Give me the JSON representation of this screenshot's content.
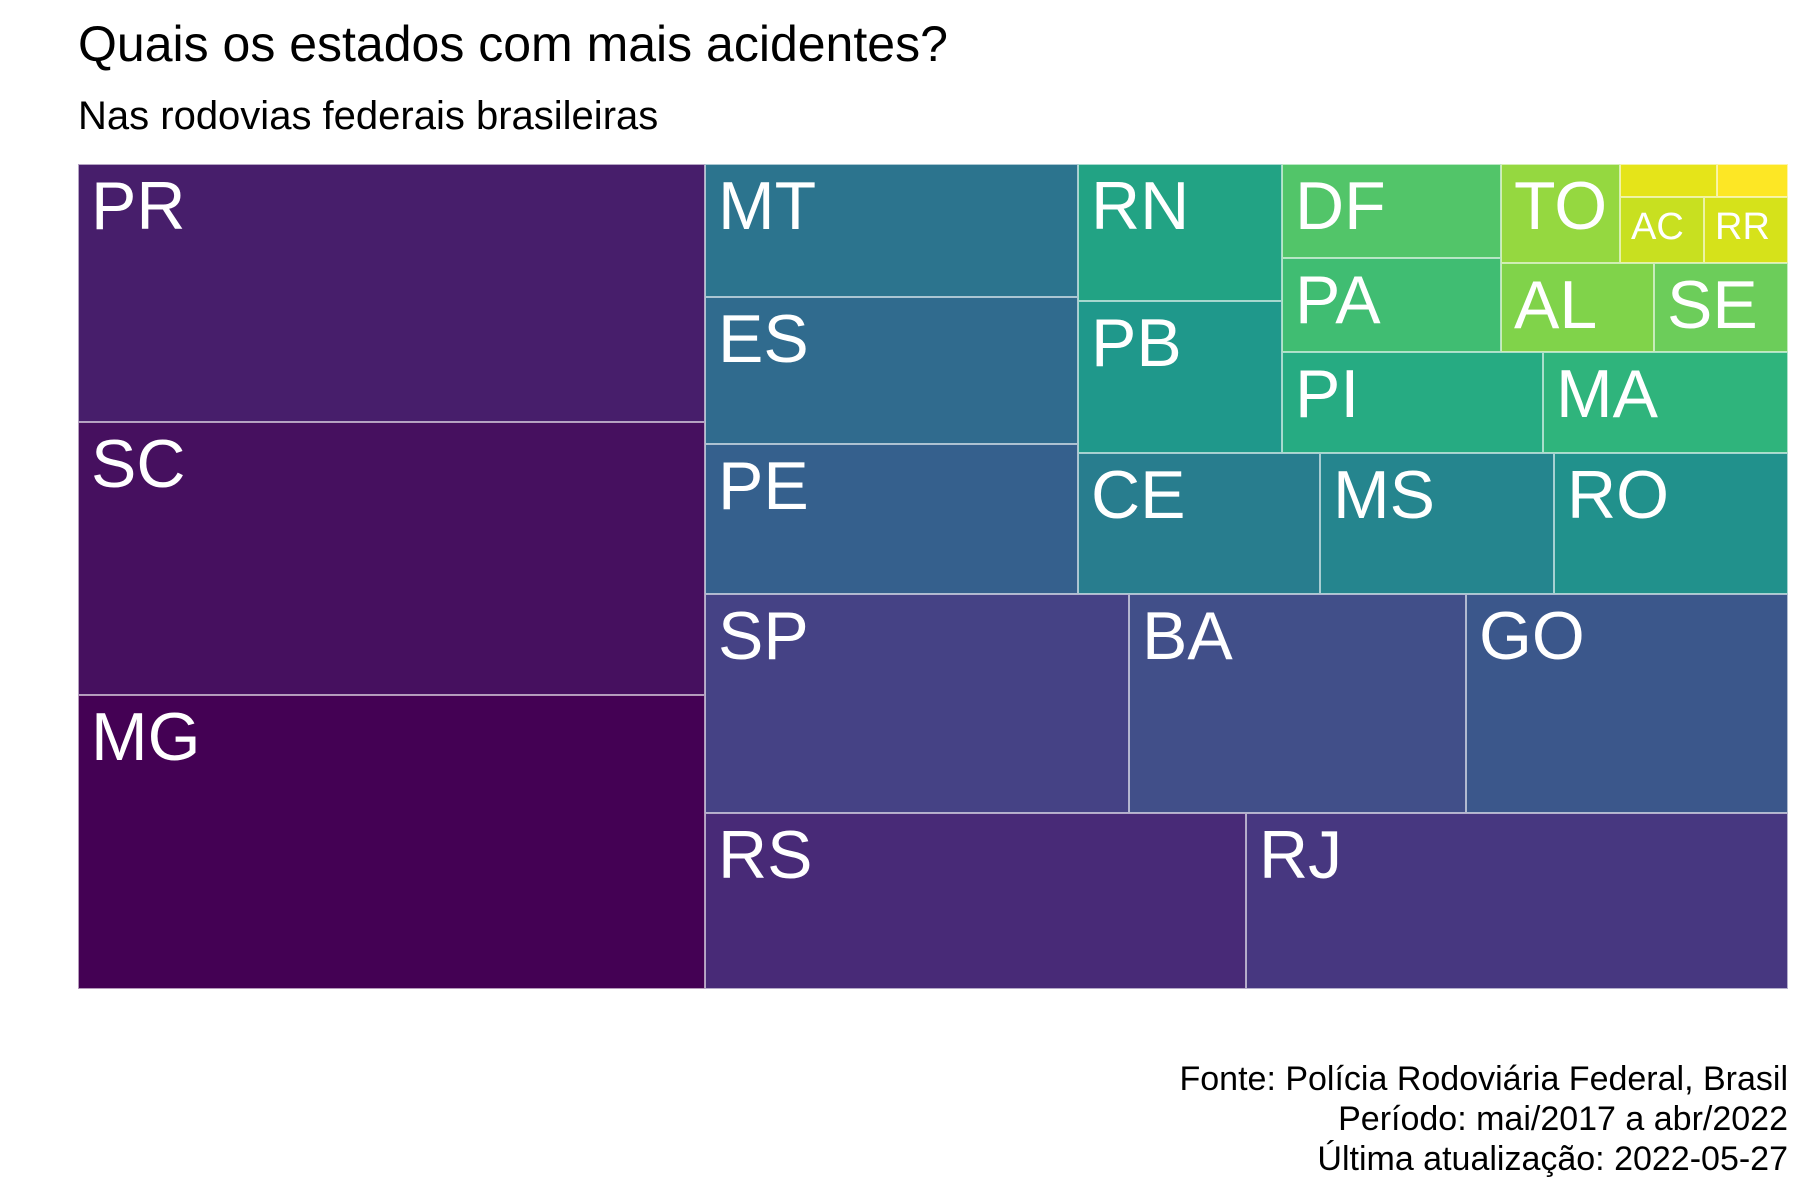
{
  "title": "Quais os estados com mais acidentes?",
  "subtitle": "Nas rodovias federais brasileiras",
  "caption": {
    "source": "Fonte: Polícia Rodoviária Federal, Brasil",
    "period": "Período: mai/2017 a abr/2022",
    "updated": "Última atualização: 2022-05-27"
  },
  "chart_data": {
    "type": "treemap",
    "title": "Quais os estados com mais acidentes?",
    "subtitle": "Nas rodovias federais brasileiras",
    "color_scale": "viridis",
    "value_unit": "share of treemap area (approx.)",
    "tiles": [
      {
        "label": "MG",
        "value": 11.83,
        "color": "#440154"
      },
      {
        "label": "SC",
        "value": 11.96,
        "color": "#46105f"
      },
      {
        "label": "PR",
        "value": 11.38,
        "color": "#471e6b"
      },
      {
        "label": "RS",
        "value": 6.46,
        "color": "#482a77"
      },
      {
        "label": "RJ",
        "value": 6.44,
        "color": "#473780"
      },
      {
        "label": "SP",
        "value": 5.4,
        "color": "#454285"
      },
      {
        "label": "BA",
        "value": 4.32,
        "color": "#414f89"
      },
      {
        "label": "GO",
        "value": 4.05,
        "color": "#3b578b"
      },
      {
        "label": "PE",
        "value": 3.31,
        "color": "#35608d"
      },
      {
        "label": "ES",
        "value": 3.2,
        "color": "#306b8e"
      },
      {
        "label": "MT",
        "value": 2.92,
        "color": "#2c748e"
      },
      {
        "label": "CE",
        "value": 2.38,
        "color": "#287d8e"
      },
      {
        "label": "MS",
        "value": 2.31,
        "color": "#25858e"
      },
      {
        "label": "RO",
        "value": 2.27,
        "color": "#21918c"
      },
      {
        "label": "PB",
        "value": 1.65,
        "color": "#1f988b"
      },
      {
        "label": "RN",
        "value": 1.65,
        "color": "#22a384"
      },
      {
        "label": "PI",
        "value": 1.4,
        "color": "#26ab82"
      },
      {
        "label": "MA",
        "value": 1.3,
        "color": "#2fb47c"
      },
      {
        "label": "PA",
        "value": 1.16,
        "color": "#40bd72"
      },
      {
        "label": "DF",
        "value": 1.16,
        "color": "#52c569"
      },
      {
        "label": "SE",
        "value": 0.69,
        "color": "#6ccd5a"
      },
      {
        "label": "AL",
        "value": 0.69,
        "color": "#80d34a"
      },
      {
        "label": "TO",
        "value": 0.69,
        "color": "#95d840"
      },
      {
        "label": "AC",
        "value": 0.3,
        "color": "#c8e020"
      },
      {
        "label": "RR",
        "value": 0.3,
        "color": "#d6e21a"
      },
      {
        "label": "",
        "value": 0.07,
        "color": "#e5e419"
      },
      {
        "label": "",
        "value": 0.04,
        "color": "#fde725"
      }
    ]
  }
}
